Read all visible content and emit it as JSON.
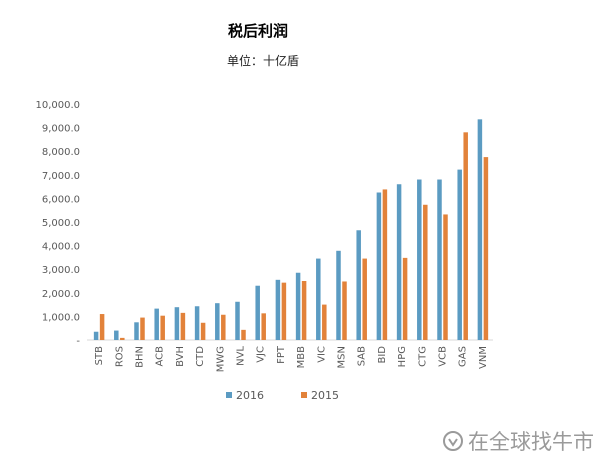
{
  "chart_data": {
    "type": "bar",
    "title": "税后利润",
    "subtitle": "单位：十亿盾",
    "categories": [
      "STB",
      "ROS",
      "BHN",
      "ACB",
      "BVH",
      "CTD",
      "MWG",
      "NVL",
      "VJC",
      "FPT",
      "MBB",
      "VIC",
      "MSN",
      "SAB",
      "BID",
      "HPG",
      "CTG",
      "VCB",
      "GAS",
      "VNM"
    ],
    "series": [
      {
        "name": "2016",
        "color": "#5b9bc2",
        "values": [
          350,
          400,
          750,
          1330,
          1390,
          1430,
          1560,
          1620,
          2300,
          2550,
          2850,
          3450,
          3780,
          4650,
          6250,
          6600,
          6800,
          6800,
          7220,
          9350
        ]
      },
      {
        "name": "2015",
        "color": "#e2823a",
        "values": [
          1100,
          90,
          950,
          1030,
          1150,
          730,
          1070,
          430,
          1130,
          2430,
          2500,
          1500,
          2480,
          3450,
          6380,
          3480,
          5730,
          5320,
          8800,
          7750
        ]
      }
    ],
    "ylim": [
      0,
      10000
    ],
    "yticks": [
      "-",
      "1,000.0",
      "2,000.0",
      "3,000.0",
      "4,000.0",
      "5,000.0",
      "6,000.0",
      "7,000.0",
      "8,000.0",
      "9,000.0",
      "10,000.0"
    ],
    "grid": false,
    "legend_position": "bottom"
  },
  "watermark": "在全球找牛市"
}
